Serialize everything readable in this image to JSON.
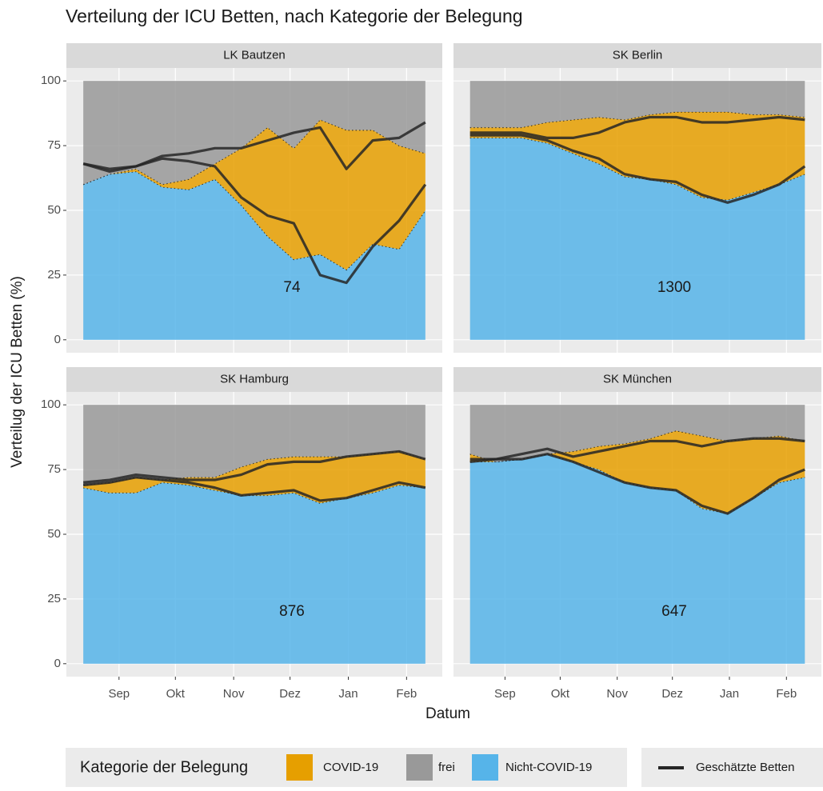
{
  "title": "Verteilung der ICU Betten, nach Kategorie der Belegung",
  "x_label": "Datum",
  "y_label": "Verteilug der ICU Betten (%)",
  "legend_title": "Kategorie der Belegung",
  "legend": [
    {
      "name": "COVID-19",
      "color": "#e69f00"
    },
    {
      "name": "frei",
      "color": "#999999"
    },
    {
      "name": "Nicht-COVID-19",
      "color": "#56b4e9"
    }
  ],
  "line_legend": {
    "name": "Geschätzte Betten",
    "color": "#262626"
  },
  "x": [
    12,
    26,
    40,
    54,
    68,
    82,
    96,
    110,
    124,
    138,
    152,
    166,
    180,
    194
  ],
  "xlim": [
    3,
    203
  ],
  "xticks": [
    {
      "value": 31,
      "label": "Sep"
    },
    {
      "value": 61,
      "label": "Okt"
    },
    {
      "value": 92,
      "label": "Nov"
    },
    {
      "value": 122,
      "label": "Dez"
    },
    {
      "value": 153,
      "label": "Jan"
    },
    {
      "value": 184,
      "label": "Feb"
    }
  ],
  "ylim": [
    -5,
    105
  ],
  "yticks": [
    0,
    25,
    50,
    75,
    100
  ],
  "chart_data": [
    {
      "type": "area",
      "title": "LK Bautzen",
      "annotation": 74,
      "series": [
        {
          "values": [
            0,
            0,
            1,
            1,
            4,
            6,
            22,
            42,
            43,
            52,
            54,
            44,
            40,
            22
          ]
        },
        {
          "values": [
            40,
            36,
            34,
            40,
            38,
            32,
            26,
            18,
            26,
            15,
            19,
            19,
            25,
            28
          ]
        },
        {
          "values": [
            60,
            64,
            65,
            59,
            58,
            62,
            52,
            40,
            31,
            33,
            27,
            37,
            35,
            50
          ]
        }
      ],
      "estimates": {
        "lower": [
          68,
          65,
          67,
          70,
          69,
          67,
          55,
          48,
          45,
          25,
          22,
          36,
          46,
          60
        ],
        "upper": [
          68,
          66,
          67,
          71,
          72,
          74,
          74,
          77,
          80,
          82,
          66,
          77,
          78,
          84
        ]
      }
    },
    {
      "type": "area",
      "title": "SK Berlin",
      "annotation": 1300,
      "series": [
        {
          "values": [
            4,
            4,
            4,
            8,
            13,
            18,
            22,
            25,
            28,
            33,
            34,
            30,
            27,
            22
          ]
        },
        {
          "values": [
            18,
            18,
            18,
            16,
            15,
            14,
            15,
            13,
            12,
            12,
            12,
            13,
            13,
            14
          ]
        },
        {
          "values": [
            78,
            78,
            78,
            76,
            72,
            68,
            63,
            62,
            60,
            55,
            54,
            57,
            60,
            64
          ]
        }
      ],
      "estimates": {
        "lower": [
          79,
          79,
          79,
          77,
          73,
          70,
          64,
          62,
          61,
          56,
          53,
          56,
          60,
          67
        ],
        "upper": [
          80,
          80,
          80,
          78,
          78,
          80,
          84,
          86,
          86,
          84,
          84,
          85,
          86,
          85
        ]
      }
    },
    {
      "type": "area",
      "title": "SK Hamburg",
      "annotation": 876,
      "series": [
        {
          "values": [
            1,
            4,
            6,
            1,
            3,
            5,
            11,
            14,
            14,
            18,
            16,
            15,
            13,
            11
          ]
        },
        {
          "values": [
            31,
            30,
            28,
            29,
            28,
            28,
            24,
            21,
            20,
            20,
            20,
            19,
            18,
            21
          ]
        },
        {
          "values": [
            68,
            66,
            66,
            70,
            69,
            67,
            65,
            65,
            66,
            62,
            64,
            66,
            69,
            68
          ]
        }
      ],
      "estimates": {
        "lower": [
          69,
          70,
          72,
          71,
          70,
          68,
          65,
          66,
          67,
          63,
          64,
          67,
          70,
          68
        ],
        "upper": [
          70,
          71,
          73,
          72,
          71,
          71,
          73,
          77,
          78,
          78,
          80,
          81,
          82,
          79
        ]
      }
    },
    {
      "type": "area",
      "title": "SK München",
      "annotation": 647,
      "series": [
        {
          "values": [
            3,
            0,
            0,
            0,
            4,
            9,
            15,
            19,
            23,
            28,
            28,
            23,
            18,
            14
          ]
        },
        {
          "values": [
            19,
            22,
            21,
            19,
            18,
            16,
            15,
            13,
            10,
            12,
            14,
            13,
            12,
            14
          ]
        },
        {
          "values": [
            78,
            78,
            79,
            81,
            78,
            75,
            70,
            68,
            67,
            60,
            58,
            64,
            70,
            72
          ]
        }
      ],
      "estimates": {
        "lower": [
          78,
          79,
          79,
          81,
          78,
          74,
          70,
          68,
          67,
          61,
          58,
          64,
          71,
          75
        ],
        "upper": [
          79,
          79,
          81,
          83,
          80,
          82,
          84,
          86,
          86,
          84,
          86,
          87,
          87,
          86
        ]
      }
    }
  ]
}
